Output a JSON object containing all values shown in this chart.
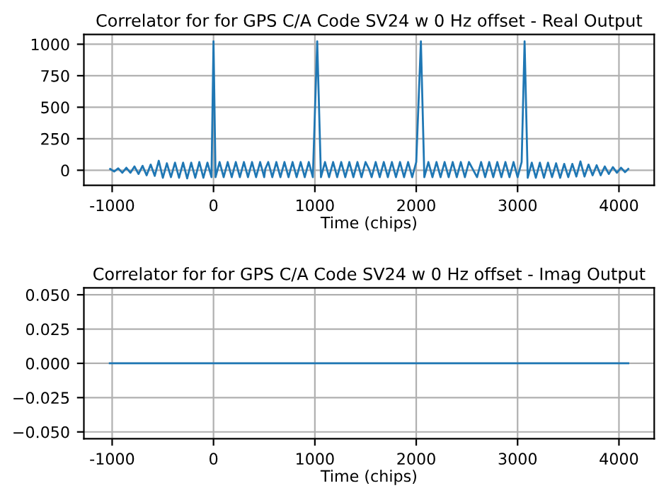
{
  "chart_data": [
    {
      "type": "line",
      "title": "Correlator for for GPS C/A Code SV24 w 0 Hz offset - Real Output",
      "xlabel": "Time (chips)",
      "series": [
        {
          "color": "#1f77b4",
          "x": [
            -1020,
            -980,
            -940,
            -900,
            -860,
            -820,
            -780,
            -740,
            -700,
            -660,
            -620,
            -580,
            -540,
            -500,
            -460,
            -420,
            -380,
            -340,
            -300,
            -260,
            -220,
            -180,
            -140,
            -100,
            -60,
            -20,
            0,
            20,
            60,
            100,
            140,
            180,
            220,
            260,
            300,
            340,
            380,
            420,
            460,
            500,
            511,
            540,
            580,
            620,
            660,
            700,
            740,
            780,
            820,
            860,
            900,
            940,
            980,
            1023,
            1060,
            1100,
            1140,
            1180,
            1220,
            1260,
            1300,
            1340,
            1380,
            1420,
            1460,
            1500,
            1534,
            1560,
            1600,
            1640,
            1680,
            1720,
            1760,
            1800,
            1840,
            1880,
            1920,
            1960,
            2000,
            2046,
            2080,
            2120,
            2160,
            2200,
            2240,
            2280,
            2320,
            2360,
            2400,
            2440,
            2480,
            2520,
            2557,
            2600,
            2640,
            2680,
            2720,
            2760,
            2800,
            2840,
            2880,
            2920,
            2960,
            3000,
            3040,
            3069,
            3100,
            3140,
            3180,
            3220,
            3260,
            3300,
            3340,
            3380,
            3420,
            3460,
            3500,
            3540,
            3580,
            3620,
            3660,
            3700,
            3740,
            3780,
            3820,
            3860,
            3900,
            3940,
            3980,
            4020,
            4060,
            4092
          ],
          "values": [
            10,
            -10,
            15,
            -20,
            20,
            -20,
            30,
            -30,
            35,
            -40,
            45,
            -45,
            75,
            -60,
            55,
            -55,
            60,
            -60,
            60,
            -65,
            60,
            -60,
            65,
            -60,
            60,
            -55,
            1023,
            -55,
            65,
            -55,
            65,
            -55,
            65,
            -55,
            65,
            -55,
            65,
            -55,
            65,
            -55,
            10,
            65,
            -55,
            65,
            -55,
            65,
            -55,
            65,
            -55,
            65,
            -55,
            65,
            -55,
            1023,
            -55,
            65,
            -55,
            65,
            -55,
            65,
            -55,
            65,
            -55,
            65,
            -55,
            65,
            10,
            -55,
            65,
            -55,
            65,
            -55,
            65,
            -55,
            65,
            -55,
            65,
            -55,
            65,
            1023,
            -55,
            65,
            -55,
            65,
            -55,
            65,
            -55,
            65,
            -55,
            65,
            -55,
            65,
            10,
            -55,
            65,
            -55,
            65,
            -55,
            65,
            -55,
            65,
            -55,
            65,
            -55,
            65,
            1023,
            -60,
            60,
            -60,
            60,
            -60,
            60,
            -55,
            55,
            -60,
            50,
            -55,
            50,
            -50,
            70,
            -50,
            45,
            -40,
            40,
            -40,
            30,
            -30,
            25,
            -20,
            20,
            -15,
            10
          ]
        }
      ],
      "xlim": [
        -1279,
        4348
      ],
      "xticks": [
        -1000,
        0,
        1000,
        2000,
        3000,
        4000
      ],
      "ylim": [
        -120,
        1077
      ],
      "yticks": [
        0,
        250,
        500,
        750,
        1000
      ],
      "grid": true
    },
    {
      "type": "line",
      "title": "Correlator for for GPS C/A Code SV24 w 0 Hz offset - Imag Output",
      "xlabel": "Time (chips)",
      "series": [
        {
          "color": "#1f77b4",
          "x": [
            -1023,
            4092
          ],
          "values": [
            0,
            0
          ]
        }
      ],
      "xlim": [
        -1279,
        4348
      ],
      "xticks": [
        -1000,
        0,
        1000,
        2000,
        3000,
        4000
      ],
      "ylim": [
        -0.055,
        0.055
      ],
      "yticks": [
        {
          "value": -0.05,
          "label": "−0.050"
        },
        {
          "value": -0.025,
          "label": "−0.025"
        },
        {
          "value": 0,
          "label": "0.000"
        },
        {
          "value": 0.025,
          "label": "0.025"
        },
        {
          "value": 0.05,
          "label": "0.050"
        }
      ],
      "grid": true
    }
  ]
}
